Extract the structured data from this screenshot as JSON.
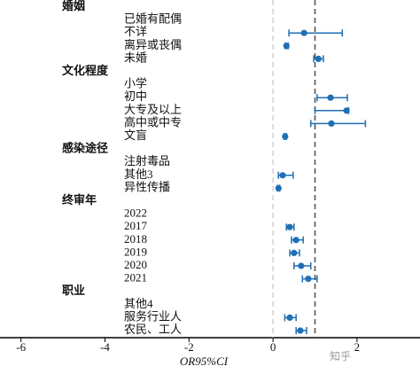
{
  "chart_data": {
    "type": "forest",
    "x_label": "OR95%CI",
    "xlim": [
      -6.5,
      3.5
    ],
    "xticks": [
      -6,
      -4,
      -2,
      0,
      2
    ],
    "color": "#1f6fb4",
    "ref_lines": [
      {
        "value": 0,
        "color": "#bbbbbb"
      },
      {
        "value": 1,
        "color": "#555555"
      }
    ],
    "groups": [
      {
        "title": "婚姻",
        "categories": [
          "已婚有配偶",
          "不详",
          "离异或丧偶",
          "未婚"
        ],
        "values": [
          null,
          0.74,
          0.32,
          1.08
        ],
        "lower": [
          null,
          0.38,
          0.29,
          0.97
        ],
        "upper": [
          null,
          1.65,
          0.36,
          1.2
        ]
      },
      {
        "title": "文化程度",
        "categories": [
          "小学",
          "初中",
          "大专及以上",
          "高中或中专",
          "文盲"
        ],
        "values": [
          null,
          1.37,
          1.75,
          1.39,
          0.29
        ],
        "lower": [
          null,
          1.05,
          1.0,
          0.9,
          0.26
        ],
        "upper": [
          null,
          1.77,
          1.8,
          2.2,
          0.32
        ]
      },
      {
        "title": "感染途径",
        "categories": [
          "注射毒品",
          "其他3",
          "异性传播"
        ],
        "values": [
          null,
          0.23,
          0.13
        ],
        "lower": [
          null,
          0.13,
          0.11
        ],
        "upper": [
          null,
          0.48,
          0.16
        ]
      },
      {
        "title": "终审年",
        "categories": [
          "2022",
          "2017",
          "2018",
          "2019",
          "2020",
          "2021"
        ],
        "values": [
          null,
          0.4,
          0.55,
          0.5,
          0.67,
          0.84
        ],
        "lower": [
          null,
          0.32,
          0.44,
          0.4,
          0.5,
          0.7
        ],
        "upper": [
          null,
          0.5,
          0.72,
          0.63,
          0.9,
          1.05
        ]
      },
      {
        "title": "职业",
        "categories": [
          "其他4",
          "服务行业人",
          "农民、工人"
        ],
        "values": [
          null,
          0.4,
          0.65
        ],
        "lower": [
          null,
          0.28,
          0.55
        ],
        "upper": [
          null,
          0.55,
          0.8
        ]
      }
    ]
  },
  "watermark": "知乎"
}
